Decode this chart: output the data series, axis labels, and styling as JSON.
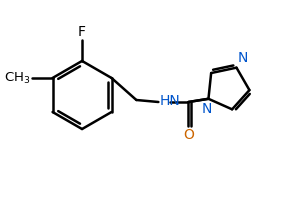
{
  "bg_color": "#ffffff",
  "bond_color": "#000000",
  "bond_width": 1.8,
  "label_color_C": "#000000",
  "label_color_N": "#0055cc",
  "label_color_O": "#cc6600",
  "label_color_F": "#000000",
  "font_size_atom": 10,
  "fig_width": 2.95,
  "fig_height": 2.02,
  "dpi": 100,
  "xlim": [
    -3.6,
    3.4
  ],
  "ylim": [
    -2.1,
    1.9
  ]
}
